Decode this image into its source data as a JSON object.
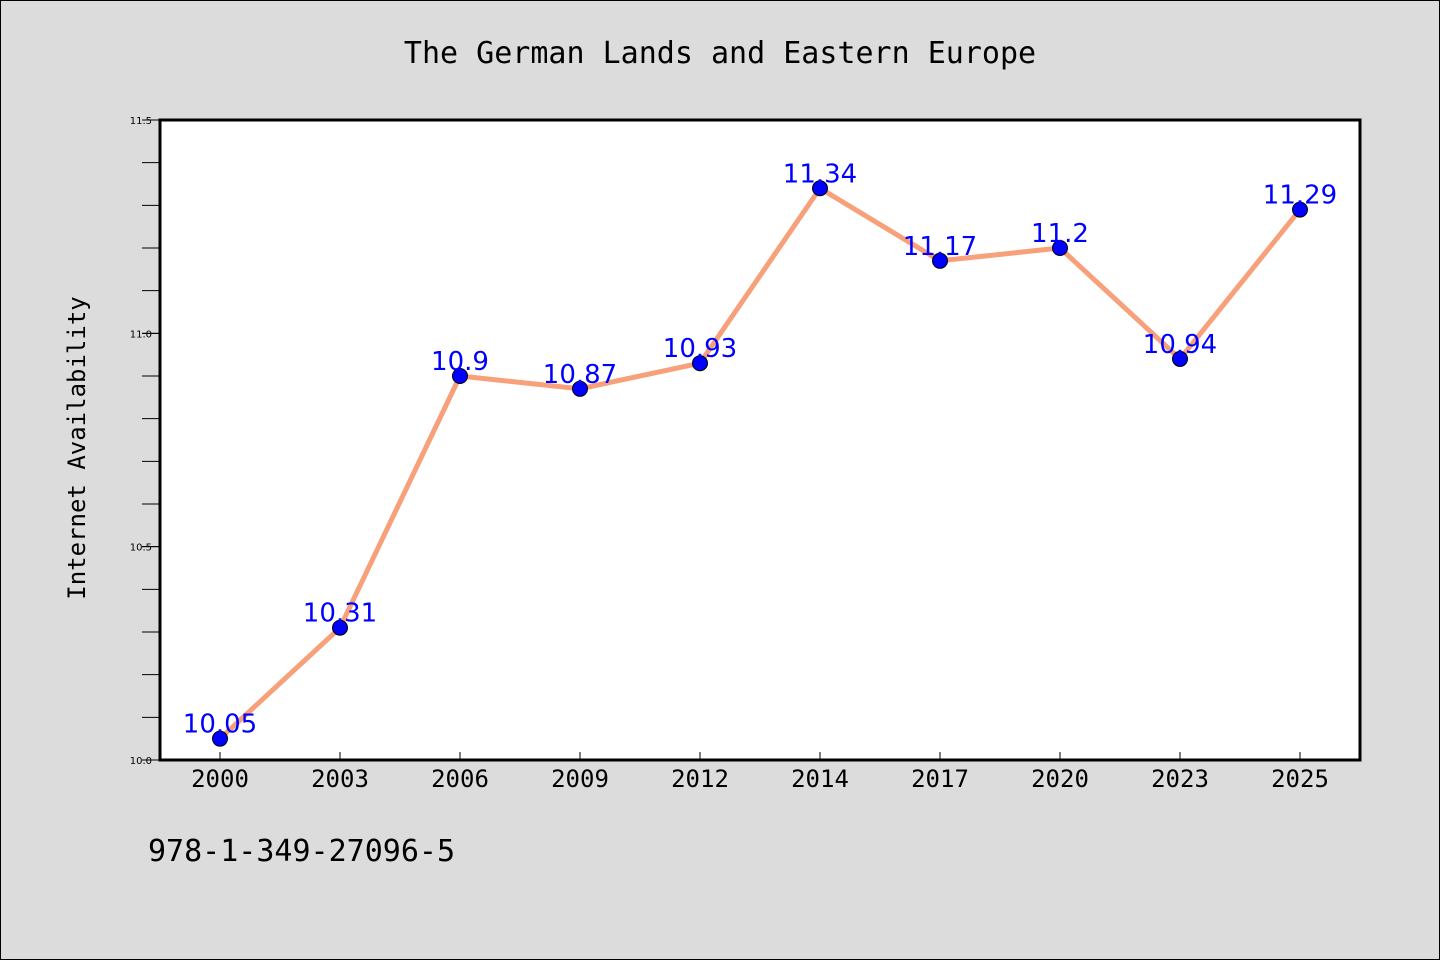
{
  "chart_data": {
    "type": "line",
    "title": "The German Lands and Eastern Europe",
    "xlabel": "",
    "ylabel": "Internet Availability",
    "categories": [
      "2000",
      "2003",
      "2006",
      "2009",
      "2012",
      "2014",
      "2017",
      "2020",
      "2023",
      "2025"
    ],
    "series": [
      {
        "values": [
          10.05,
          10.31,
          10.9,
          10.87,
          10.93,
          11.34,
          11.17,
          11.2,
          10.94,
          11.29
        ],
        "data_labels": [
          "10.05",
          "10.31",
          "10.9",
          "10.87",
          "10.93",
          "11.34",
          "11.17",
          "11.2",
          "10.94",
          "11.29"
        ]
      }
    ],
    "ylim": [
      10.0,
      11.5
    ],
    "y_ticks": [
      "10.0",
      "10.5",
      "11.0",
      "11.5"
    ],
    "grid": false,
    "legend": "none",
    "colors": {
      "line": "#f7a07a",
      "marker": "#0000ff",
      "label": "#0000ff",
      "background": "#dcdcdc",
      "plot_area": "#ffffff"
    }
  },
  "caption": "978-1-349-27096-5"
}
